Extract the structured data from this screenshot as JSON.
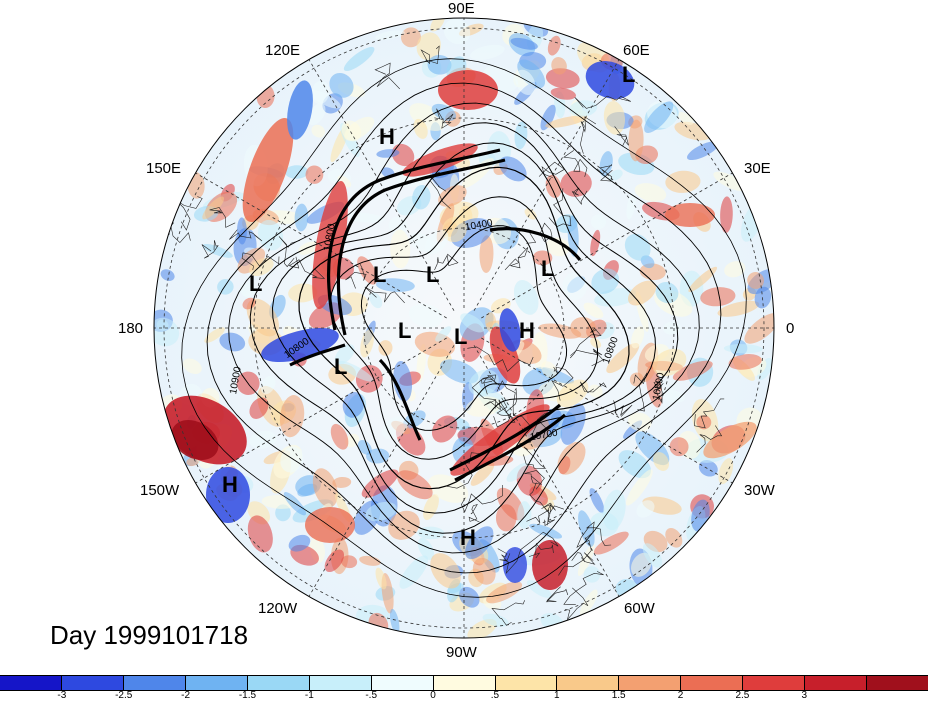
{
  "title": "Day 1999101718",
  "longitude_labels": {
    "top": "90E",
    "upper_left": "120E",
    "upper_right": "60E",
    "left_upper": "150E",
    "right_upper": "30E",
    "left": "180",
    "right": "0",
    "left_lower": "150W",
    "right_lower": "30W",
    "lower_left": "120W",
    "lower_right": "60W",
    "bottom": "90W"
  },
  "pressure_markers": [
    {
      "type": "H",
      "name": "high-120e"
    },
    {
      "type": "L",
      "name": "low-60e"
    },
    {
      "type": "L",
      "name": "low-180"
    },
    {
      "type": "L",
      "name": "low-siberia-west"
    },
    {
      "type": "L",
      "name": "low-siberia-east"
    },
    {
      "type": "L",
      "name": "low-europe"
    },
    {
      "type": "L",
      "name": "low-arctic"
    },
    {
      "type": "L",
      "name": "low-pole"
    },
    {
      "type": "H",
      "name": "high-greenland"
    },
    {
      "type": "L",
      "name": "low-bering"
    },
    {
      "type": "H",
      "name": "high-pacific"
    },
    {
      "type": "H",
      "name": "high-gulf"
    }
  ],
  "contour_labels": [
    "10400",
    "10800",
    "10800",
    "10900",
    "10800",
    "10800",
    "10700"
  ],
  "colorbar": {
    "colors": [
      "#1515c8",
      "#2e49e0",
      "#4f86ea",
      "#6fb3f2",
      "#9ad8f5",
      "#c8effa",
      "#effcfe",
      "#fffbe0",
      "#fde4a8",
      "#f9c98a",
      "#f3a071",
      "#eb6e54",
      "#df3d3c",
      "#c71f2b",
      "#a0101c"
    ],
    "labels": [
      "-3",
      "-2.5",
      "-2",
      "-1.5",
      "-1",
      "-.5",
      "0",
      ".5",
      "1",
      "1.5",
      "2",
      "2.5",
      "3"
    ]
  }
}
